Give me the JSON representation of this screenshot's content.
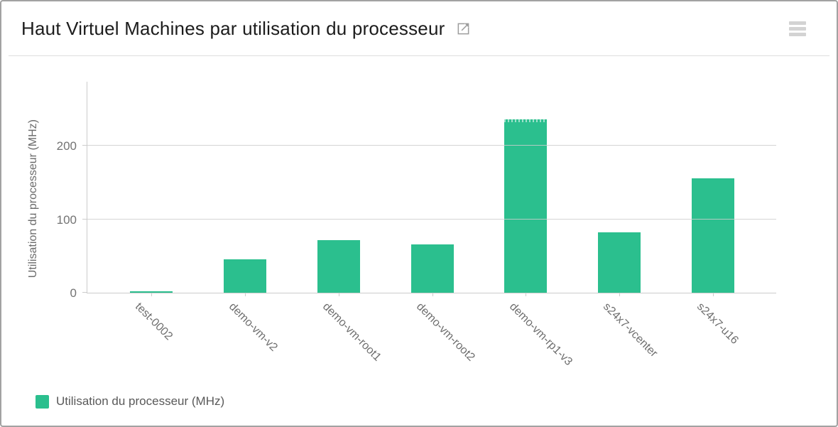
{
  "header": {
    "title": "Haut Virtuel Machines par utilisation du processeur",
    "icons": {
      "open_in_new": "open-in-new-window",
      "menu": "hamburger-menu"
    }
  },
  "colors": {
    "bar": "#2bbf8e",
    "axis": "#cccccc",
    "tick_text": "#737373",
    "label_text": "#6e6e6e",
    "legend_text": "#595959"
  },
  "chart_data": {
    "type": "bar",
    "title": "Haut Virtuel Machines par utilisation du processeur",
    "categories": [
      "test-0002",
      "demo-vm-v2",
      "demo-vm-root1",
      "demo-vm-root2",
      "demo-vm-rp1-v3",
      "s24x7-vcenter",
      "s24x7-u16"
    ],
    "values": [
      2,
      45,
      72,
      66,
      236,
      82,
      156
    ],
    "series_name": "Utilisation du processeur (MHz)",
    "xlabel": "",
    "ylabel": "Utilisation du processeur (MHz)",
    "yticks": [
      0,
      100,
      200
    ],
    "ylim": [
      0,
      288
    ],
    "grid": true,
    "bar_color": "#2bbf8e",
    "capped_bar_index": 4,
    "legend_position": "bottom-left"
  },
  "legend": {
    "label": "Utilisation du processeur (MHz)"
  }
}
